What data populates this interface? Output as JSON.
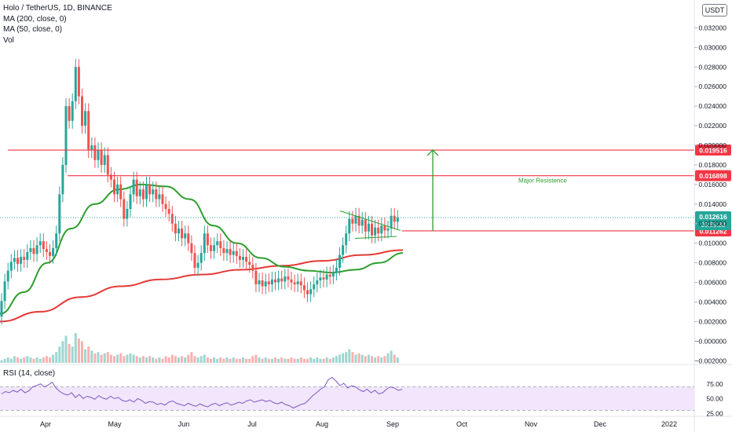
{
  "legend": {
    "title": "Holo / TetherUS, 1D, BINANCE",
    "ma200": "MA (200, close, 0)",
    "ma50": "MA (50, close, 0)",
    "vol": "Vol"
  },
  "unit": "USDT",
  "rsi_label": "RSI (14, close)",
  "colors": {
    "up": "#26a69a",
    "down": "#ef5350",
    "ma200": "#e53935",
    "ma50": "#2e9e2e",
    "levels": "#f23645",
    "target_arrow": "#2e9e2e",
    "rsi_line": "#7e57c2",
    "rsi_band": "#f1e6fb",
    "axis_text": "#131722"
  },
  "chart_data": [
    {
      "type": "candlestick",
      "x_ticks": [
        "Apr",
        "May",
        "Jun",
        "Jul",
        "Aug",
        "Sep",
        "Oct",
        "Nov",
        "Dec",
        "2022"
      ],
      "y_ticks": [
        "0.032000",
        "0.030000",
        "0.028000",
        "0.026000",
        "0.024000",
        "0.022000",
        "0.020000",
        "0.018000",
        "0.016000",
        "0.014000",
        "0.012000",
        "0.010000",
        "0.008000",
        "0.006000",
        "0.004000",
        "0.002000",
        "−0.000000",
        "−0.002000"
      ],
      "ylim": [
        -0.0023,
        0.0342
      ],
      "horizontal_levels": [
        {
          "value": 0.019516,
          "label": "0.019516"
        },
        {
          "value": 0.016898,
          "label": "0.016898"
        },
        {
          "value": 0.011262,
          "label": "0.011262"
        }
      ],
      "last_price": {
        "value": 0.012616,
        "label": "0.012616",
        "countdown": "09:59:33"
      },
      "annotation": "Major Resistence",
      "target_arrow": {
        "from": 0.011262,
        "to": 0.019516
      },
      "triangle": {
        "upper": [
          0.0133,
          0.0113
        ],
        "lower": [
          0.0105,
          0.0107
        ]
      },
      "candles": [
        [
          0.0025,
          0.0041
        ],
        [
          0.0041,
          0.0061
        ],
        [
          0.0061,
          0.0072
        ],
        [
          0.0072,
          0.0081
        ],
        [
          0.0081,
          0.0085
        ],
        [
          0.0085,
          0.0079
        ],
        [
          0.0079,
          0.0086
        ],
        [
          0.0086,
          0.0083
        ],
        [
          0.0083,
          0.0091
        ],
        [
          0.0091,
          0.0095
        ],
        [
          0.0095,
          0.0089
        ],
        [
          0.0089,
          0.0098
        ],
        [
          0.0098,
          0.0102
        ],
        [
          0.0102,
          0.0094
        ],
        [
          0.0094,
          0.0091
        ],
        [
          0.0091,
          0.0087
        ],
        [
          0.0087,
          0.0095
        ],
        [
          0.0095,
          0.011
        ],
        [
          0.011,
          0.015
        ],
        [
          0.015,
          0.018
        ],
        [
          0.018,
          0.024
        ],
        [
          0.024,
          0.0225
        ],
        [
          0.0225,
          0.0245
        ],
        [
          0.0245,
          0.028
        ],
        [
          0.028,
          0.025
        ],
        [
          0.025,
          0.022
        ],
        [
          0.022,
          0.0235
        ],
        [
          0.0235,
          0.0195
        ],
        [
          0.0195,
          0.02
        ],
        [
          0.02,
          0.0185
        ],
        [
          0.0185,
          0.0195
        ],
        [
          0.0195,
          0.018
        ],
        [
          0.018,
          0.019
        ],
        [
          0.019,
          0.017
        ],
        [
          0.017,
          0.0165
        ],
        [
          0.0165,
          0.015
        ],
        [
          0.015,
          0.016
        ],
        [
          0.016,
          0.0145
        ],
        [
          0.0145,
          0.0125
        ],
        [
          0.0125,
          0.0135
        ],
        [
          0.0135,
          0.015
        ],
        [
          0.015,
          0.0165
        ],
        [
          0.0165,
          0.0148
        ],
        [
          0.0148,
          0.0155
        ],
        [
          0.0155,
          0.0145
        ],
        [
          0.0145,
          0.016
        ],
        [
          0.016,
          0.015
        ],
        [
          0.015,
          0.0155
        ],
        [
          0.0155,
          0.0145
        ],
        [
          0.0145,
          0.015
        ],
        [
          0.015,
          0.014
        ],
        [
          0.014,
          0.0135
        ],
        [
          0.0135,
          0.013
        ],
        [
          0.013,
          0.012
        ],
        [
          0.012,
          0.011
        ],
        [
          0.011,
          0.0115
        ],
        [
          0.0115,
          0.0105
        ],
        [
          0.0105,
          0.011
        ],
        [
          0.011,
          0.01
        ],
        [
          0.01,
          0.009
        ],
        [
          0.009,
          0.0075
        ],
        [
          0.0075,
          0.008
        ],
        [
          0.008,
          0.009
        ],
        [
          0.009,
          0.011
        ],
        [
          0.011,
          0.0098
        ],
        [
          0.0098,
          0.0092
        ],
        [
          0.0092,
          0.0098
        ],
        [
          0.0098,
          0.0102
        ],
        [
          0.0102,
          0.0095
        ],
        [
          0.0095,
          0.009
        ],
        [
          0.009,
          0.0094
        ],
        [
          0.0094,
          0.0088
        ],
        [
          0.0088,
          0.0092
        ],
        [
          0.0092,
          0.0087
        ],
        [
          0.0087,
          0.0083
        ],
        [
          0.0083,
          0.0086
        ],
        [
          0.0086,
          0.0081
        ],
        [
          0.0081,
          0.0078
        ],
        [
          0.0078,
          0.0072
        ],
        [
          0.0072,
          0.0058
        ],
        [
          0.0058,
          0.0062
        ],
        [
          0.0062,
          0.0056
        ],
        [
          0.0056,
          0.0061
        ],
        [
          0.0061,
          0.0058
        ],
        [
          0.0058,
          0.0063
        ],
        [
          0.0063,
          0.006
        ],
        [
          0.006,
          0.0064
        ],
        [
          0.0064,
          0.0061
        ],
        [
          0.0061,
          0.0066
        ],
        [
          0.0066,
          0.0063
        ],
        [
          0.0063,
          0.006
        ],
        [
          0.006,
          0.0058
        ],
        [
          0.0058,
          0.0061
        ],
        [
          0.0061,
          0.0057
        ],
        [
          0.0057,
          0.0052
        ],
        [
          0.0052,
          0.0048
        ],
        [
          0.0048,
          0.0053
        ],
        [
          0.0053,
          0.0058
        ],
        [
          0.0058,
          0.0062
        ],
        [
          0.0062,
          0.0065
        ],
        [
          0.0065,
          0.0063
        ],
        [
          0.0063,
          0.0068
        ],
        [
          0.0068,
          0.0066
        ],
        [
          0.0066,
          0.007
        ],
        [
          0.007,
          0.0075
        ],
        [
          0.0075,
          0.0088
        ],
        [
          0.0088,
          0.0098
        ],
        [
          0.0098,
          0.011
        ],
        [
          0.011,
          0.0125
        ],
        [
          0.0125,
          0.012
        ],
        [
          0.012,
          0.0128
        ],
        [
          0.0128,
          0.0118
        ],
        [
          0.0118,
          0.0124
        ],
        [
          0.0124,
          0.0112
        ],
        [
          0.0112,
          0.012
        ],
        [
          0.012,
          0.0108
        ],
        [
          0.0108,
          0.0116
        ],
        [
          0.0116,
          0.011
        ],
        [
          0.011,
          0.0118
        ],
        [
          0.0118,
          0.0113
        ],
        [
          0.0113,
          0.0115
        ],
        [
          0.0115,
          0.0128
        ],
        [
          0.0128,
          0.0122
        ],
        [
          0.0122,
          0.0126
        ]
      ],
      "ma50": [
        0.0028,
        0.005,
        0.008,
        0.0115,
        0.014,
        0.0155,
        0.016,
        0.0158,
        0.0145,
        0.0118,
        0.01,
        0.0085,
        0.0076,
        0.0072,
        0.007,
        0.0073,
        0.008,
        0.009
      ],
      "ma200": [
        0.002,
        0.003,
        0.0045,
        0.0056,
        0.0063,
        0.0068,
        0.0073,
        0.0077,
        0.0082,
        0.0088,
        0.0093
      ],
      "volume": [
        2,
        3,
        4,
        3,
        5,
        4,
        3,
        4,
        5,
        4,
        3,
        4,
        3,
        4,
        5,
        4,
        6,
        8,
        12,
        16,
        20,
        14,
        12,
        22,
        18,
        16,
        10,
        12,
        9,
        7,
        8,
        6,
        7,
        8,
        6,
        5,
        6,
        7,
        5,
        6,
        7,
        6,
        5,
        4,
        5,
        4,
        5,
        4,
        3,
        4,
        3,
        5,
        4,
        6,
        5,
        4,
        5,
        4,
        6,
        8,
        5,
        4,
        5,
        6,
        4,
        3,
        4,
        3,
        4,
        3,
        4,
        3,
        4,
        3,
        3,
        4,
        3,
        3,
        5,
        6,
        4,
        3,
        4,
        3,
        3,
        4,
        3,
        4,
        3,
        3,
        4,
        3,
        3,
        4,
        3,
        3,
        4,
        3,
        4,
        3,
        3,
        4,
        3,
        4,
        5,
        6,
        7,
        8,
        10,
        8,
        6,
        7,
        6,
        5,
        6,
        5,
        4,
        5,
        4,
        5,
        7,
        9,
        6,
        4
      ],
      "rsi": [
        58,
        62,
        60,
        64,
        61,
        66,
        60,
        63,
        70,
        72,
        75,
        70,
        73,
        78,
        68,
        62,
        58,
        56,
        60,
        52,
        57,
        50,
        54,
        52,
        49,
        55,
        51,
        49,
        54,
        50,
        52,
        47,
        45,
        48,
        44,
        50,
        47,
        42,
        45,
        44,
        40,
        42,
        39,
        44,
        46,
        42,
        40,
        38,
        42,
        39,
        37,
        41,
        38,
        36,
        40,
        42,
        38,
        41,
        43,
        39,
        41,
        44,
        42,
        46,
        48,
        44,
        46,
        48,
        45,
        47,
        43,
        41,
        44,
        40,
        38,
        34,
        37,
        40,
        42,
        48,
        55,
        60,
        66,
        70,
        82,
        86,
        80,
        72,
        76,
        68,
        72,
        70,
        65,
        62,
        66,
        60,
        64,
        58,
        60,
        66,
        70,
        68,
        64,
        66
      ]
    },
    {
      "type": "line",
      "name": "RSI (14, close)",
      "y_ticks": [
        "75.00",
        "50.00",
        "25.00"
      ],
      "ylim": [
        20,
        100
      ],
      "bands": [
        70,
        30
      ]
    }
  ]
}
